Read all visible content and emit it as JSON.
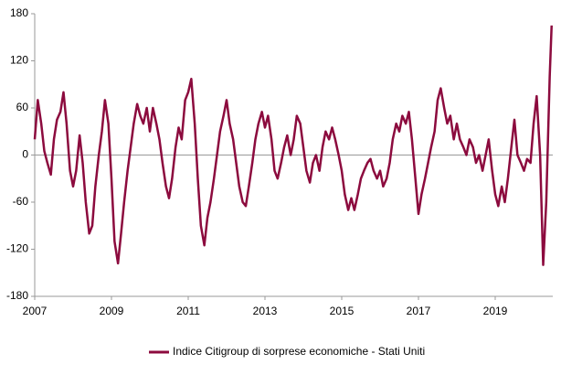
{
  "chart_data": {
    "type": "line",
    "x": [
      2007.0,
      2007.08,
      2007.17,
      2007.25,
      2007.33,
      2007.42,
      2007.5,
      2007.58,
      2007.67,
      2007.75,
      2007.83,
      2007.92,
      2008.0,
      2008.08,
      2008.17,
      2008.25,
      2008.33,
      2008.42,
      2008.5,
      2008.58,
      2008.67,
      2008.75,
      2008.83,
      2008.92,
      2009.0,
      2009.08,
      2009.17,
      2009.25,
      2009.33,
      2009.42,
      2009.5,
      2009.58,
      2009.67,
      2009.75,
      2009.83,
      2009.92,
      2010.0,
      2010.08,
      2010.17,
      2010.25,
      2010.33,
      2010.42,
      2010.5,
      2010.58,
      2010.67,
      2010.75,
      2010.83,
      2010.92,
      2011.0,
      2011.08,
      2011.17,
      2011.25,
      2011.33,
      2011.42,
      2011.5,
      2011.58,
      2011.67,
      2011.75,
      2011.83,
      2011.92,
      2012.0,
      2012.08,
      2012.17,
      2012.25,
      2012.33,
      2012.42,
      2012.5,
      2012.58,
      2012.67,
      2012.75,
      2012.83,
      2012.92,
      2013.0,
      2013.08,
      2013.17,
      2013.25,
      2013.33,
      2013.42,
      2013.5,
      2013.58,
      2013.67,
      2013.75,
      2013.83,
      2013.92,
      2014.0,
      2014.08,
      2014.17,
      2014.25,
      2014.33,
      2014.42,
      2014.5,
      2014.58,
      2014.67,
      2014.75,
      2014.83,
      2014.92,
      2015.0,
      2015.08,
      2015.17,
      2015.25,
      2015.33,
      2015.42,
      2015.5,
      2015.58,
      2015.67,
      2015.75,
      2015.83,
      2015.92,
      2016.0,
      2016.08,
      2016.17,
      2016.25,
      2016.33,
      2016.42,
      2016.5,
      2016.58,
      2016.67,
      2016.75,
      2016.83,
      2016.92,
      2017.0,
      2017.08,
      2017.17,
      2017.25,
      2017.33,
      2017.42,
      2017.5,
      2017.58,
      2017.67,
      2017.75,
      2017.83,
      2017.92,
      2018.0,
      2018.08,
      2018.17,
      2018.25,
      2018.33,
      2018.42,
      2018.5,
      2018.58,
      2018.67,
      2018.75,
      2018.83,
      2018.92,
      2019.0,
      2019.08,
      2019.17,
      2019.25,
      2019.33,
      2019.42,
      2019.5,
      2019.58,
      2019.67,
      2019.75,
      2019.83,
      2019.92,
      2020.0,
      2020.08,
      2020.17,
      2020.25,
      2020.33,
      2020.42,
      2020.47
    ],
    "series": [
      {
        "name": "Indice Citigroup di sorprese economiche - Stati Uniti",
        "color": "#8c0b3e",
        "values": [
          20,
          70,
          40,
          5,
          -10,
          -25,
          20,
          45,
          55,
          80,
          40,
          -20,
          -40,
          -20,
          25,
          -10,
          -60,
          -100,
          -90,
          -40,
          0,
          30,
          70,
          40,
          -30,
          -110,
          -138,
          -100,
          -60,
          -20,
          10,
          40,
          65,
          50,
          40,
          60,
          30,
          60,
          40,
          20,
          -10,
          -40,
          -55,
          -30,
          10,
          35,
          20,
          70,
          80,
          97,
          40,
          -30,
          -90,
          -115,
          -80,
          -60,
          -30,
          0,
          30,
          50,
          70,
          40,
          20,
          -10,
          -40,
          -60,
          -65,
          -40,
          -10,
          20,
          40,
          55,
          35,
          50,
          20,
          -20,
          -30,
          -10,
          10,
          25,
          0,
          20,
          50,
          40,
          10,
          -20,
          -35,
          -10,
          0,
          -20,
          10,
          30,
          20,
          35,
          20,
          0,
          -20,
          -50,
          -70,
          -55,
          -70,
          -50,
          -30,
          -20,
          -10,
          -5,
          -20,
          -30,
          -20,
          -40,
          -30,
          -10,
          20,
          40,
          30,
          50,
          40,
          55,
          20,
          -30,
          -75,
          -50,
          -30,
          -10,
          10,
          30,
          70,
          85,
          60,
          40,
          50,
          20,
          40,
          20,
          10,
          0,
          20,
          10,
          -10,
          0,
          -20,
          0,
          20,
          -20,
          -50,
          -65,
          -40,
          -60,
          -30,
          10,
          45,
          0,
          -10,
          -20,
          -5,
          -10,
          40,
          75,
          0,
          -140,
          -60,
          100,
          165
        ]
      }
    ],
    "xlim": [
      2007,
      2020.5
    ],
    "xticks": [
      2007,
      2009,
      2011,
      2013,
      2015,
      2017,
      2019
    ],
    "ylim": [
      -180,
      180
    ],
    "yticks": [
      -180,
      -120,
      -60,
      0,
      60,
      120,
      180
    ],
    "legend": "bottom"
  }
}
